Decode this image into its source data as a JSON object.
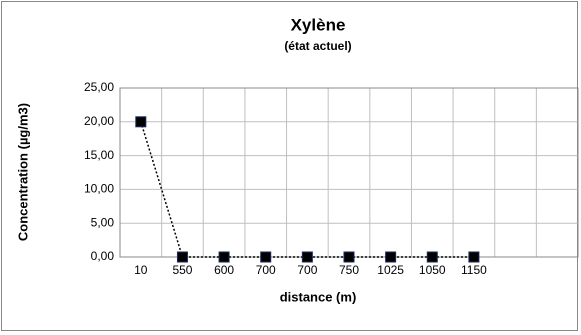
{
  "chart_data": {
    "type": "line",
    "title": "Xylène",
    "subtitle": "(état actuel)",
    "x_label": "distance (m)",
    "y_label": "Concentration (µg/m3)",
    "categories": [
      "10",
      "550",
      "600",
      "700",
      "700",
      "750",
      "1025",
      "1050",
      "1150",
      null,
      null
    ],
    "series": [
      {
        "name": "Xylène",
        "color": "#000000",
        "values": [
          20,
          0,
          0,
          0,
          0,
          0,
          0,
          0,
          0,
          null,
          null
        ]
      }
    ],
    "ylim": [
      0,
      25
    ],
    "yticks": [
      {
        "value": 0,
        "label": "0,00"
      },
      {
        "value": 5,
        "label": "5,00"
      },
      {
        "value": 10,
        "label": "10,00"
      },
      {
        "value": 15,
        "label": "15,00"
      },
      {
        "value": 20,
        "label": "20,00"
      },
      {
        "value": 25,
        "label": "25,00"
      }
    ],
    "grid": true
  }
}
